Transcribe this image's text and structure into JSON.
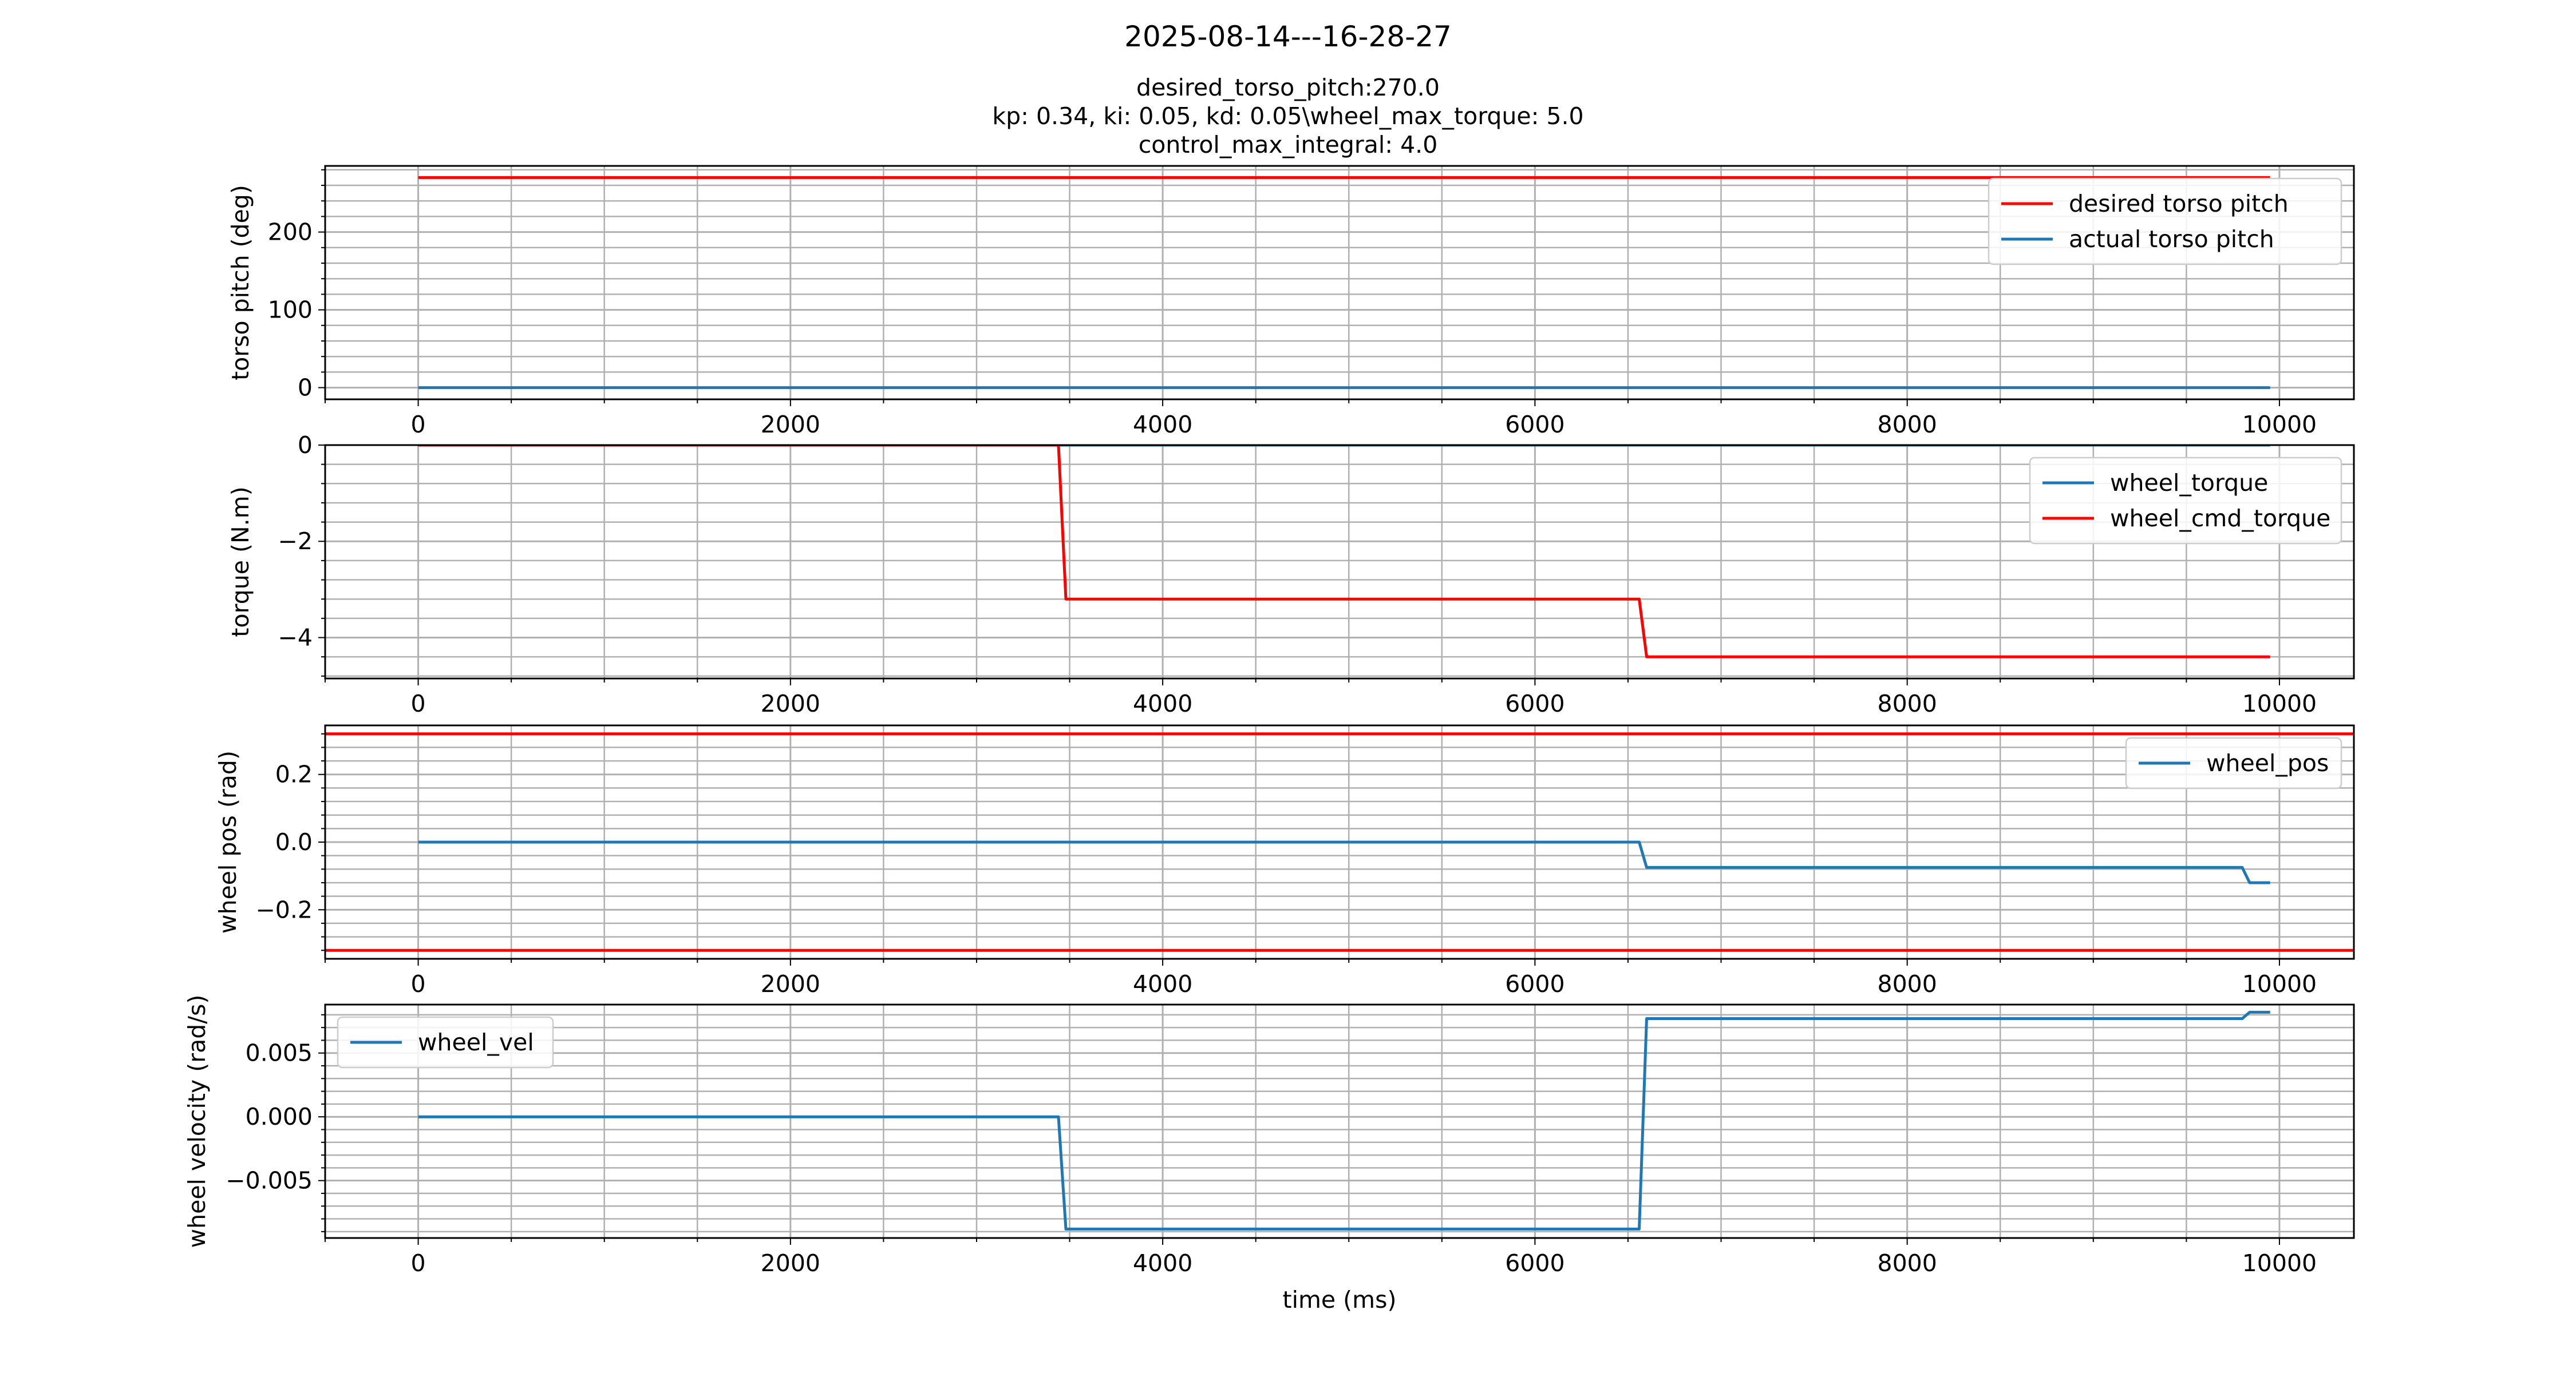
{
  "figure": {
    "title": "2025-08-14---16-28-27",
    "subtitle_lines": [
      "desired_torso_pitch:270.0",
      "kp: 0.34, ki: 0.05, kd: 0.05\\wheel_max_torque: 5.0",
      "control_max_integral: 4.0"
    ],
    "colors": {
      "red": "#ff0000",
      "blue": "#1f77b4",
      "grid": "#b0b0b0"
    }
  },
  "chart_data": [
    {
      "type": "line",
      "ylabel": "torso pitch (deg)",
      "xlabel": "",
      "xlim": [
        -500,
        10400
      ],
      "ylim": [
        -15,
        285
      ],
      "xticks": [
        0,
        2000,
        4000,
        6000,
        8000,
        10000
      ],
      "yticks": [
        0,
        100,
        200
      ],
      "ytick_labels": [
        "0",
        "100",
        "200"
      ],
      "grid": true,
      "legend": "upper right",
      "series": [
        {
          "name": "desired torso pitch",
          "color": "#ff0000",
          "x": [
            0,
            9950
          ],
          "y": [
            270,
            270
          ]
        },
        {
          "name": "actual torso pitch",
          "color": "#1f77b4",
          "x": [
            0,
            9950
          ],
          "y": [
            0,
            0
          ]
        }
      ]
    },
    {
      "type": "line",
      "ylabel": "torque (N.m)",
      "xlabel": "",
      "xlim": [
        -500,
        10400
      ],
      "ylim": [
        -4.85,
        0
      ],
      "xticks": [
        0,
        2000,
        4000,
        6000,
        8000,
        10000
      ],
      "yticks": [
        0,
        -2,
        -4
      ],
      "ytick_labels": [
        "0",
        "−2",
        "−4"
      ],
      "grid": true,
      "legend": "upper right",
      "series": [
        {
          "name": "wheel_torque",
          "color": "#1f77b4",
          "x": [
            0,
            9950
          ],
          "y": [
            0,
            0
          ]
        },
        {
          "name": "wheel_cmd_torque",
          "color": "#ff0000",
          "x": [
            0,
            3440,
            3480,
            6560,
            6600,
            9950
          ],
          "y": [
            0,
            0,
            -3.2,
            -3.2,
            -4.4,
            -4.4
          ]
        }
      ]
    },
    {
      "type": "line",
      "ylabel": "wheel pos (rad)",
      "xlabel": "",
      "xlim": [
        -500,
        10400
      ],
      "ylim": [
        -0.345,
        0.345
      ],
      "xticks": [
        0,
        2000,
        4000,
        6000,
        8000,
        10000
      ],
      "yticks": [
        0.2,
        0.0,
        -0.2
      ],
      "ytick_labels": [
        "0.2",
        "0.0",
        "−0.2"
      ],
      "grid": true,
      "legend": "upper right",
      "hlines": [
        {
          "y": 0.32,
          "color": "#ff0000"
        },
        {
          "y": -0.32,
          "color": "#ff0000"
        }
      ],
      "series": [
        {
          "name": "wheel_pos",
          "color": "#1f77b4",
          "x": [
            0,
            6560,
            6600,
            9800,
            9840,
            9950
          ],
          "y": [
            0,
            0,
            -0.075,
            -0.075,
            -0.12,
            -0.12
          ]
        }
      ]
    },
    {
      "type": "line",
      "ylabel": "wheel velocity (rad/s)",
      "xlabel": "time (ms)",
      "xlim": [
        -500,
        10400
      ],
      "ylim": [
        -0.0095,
        0.0088
      ],
      "xticks": [
        0,
        2000,
        4000,
        6000,
        8000,
        10000
      ],
      "yticks": [
        0.005,
        0.0,
        -0.005
      ],
      "ytick_labels": [
        "0.005",
        "0.000",
        "−0.005"
      ],
      "grid": true,
      "legend": "upper left",
      "series": [
        {
          "name": "wheel_vel",
          "color": "#1f77b4",
          "x": [
            0,
            3440,
            3480,
            6560,
            6600,
            9800,
            9840,
            9950
          ],
          "y": [
            0,
            0,
            -0.0088,
            -0.0088,
            0.0077,
            0.0077,
            0.0082,
            0.0082
          ]
        }
      ]
    }
  ]
}
